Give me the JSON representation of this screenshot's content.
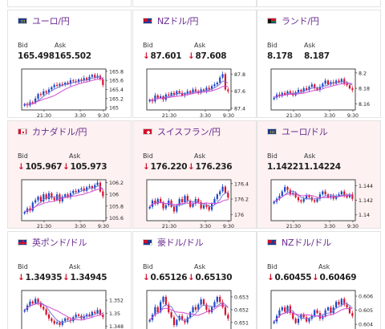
{
  "bid_label": "Bid",
  "ask_label": "Ask",
  "x_ticks": [
    "21:30",
    "3:30",
    "9:30"
  ],
  "colors": {
    "up": "#1a49c4",
    "down": "#d8102b",
    "ma1": "#7a7ad6",
    "ma2": "#d44bd4",
    "pair": "#6a2c91",
    "arrow": "#d8102b"
  },
  "cards": [
    {
      "pair": "ユーロ/円",
      "flag": "eu",
      "bid": "165.498",
      "ask": "165.502",
      "bid_down": false,
      "ask_down": false,
      "bg": "white",
      "y_ticks": [
        "165.8",
        "165.6",
        "165.4",
        "165.2",
        "165"
      ],
      "yrange": [
        164.95,
        165.85
      ],
      "closes": [
        165.08,
        165.05,
        165.12,
        165.1,
        165.2,
        165.3,
        165.28,
        165.36,
        165.33,
        165.4,
        165.45,
        165.5,
        165.48,
        165.52,
        165.5,
        165.55,
        165.52,
        165.6,
        165.58,
        165.56,
        165.62,
        165.6,
        165.65,
        165.6,
        165.68,
        165.72,
        165.66,
        165.7,
        165.62,
        165.5
      ]
    },
    {
      "pair": "NZドル/円",
      "flag": "nz",
      "bid": "87.601",
      "ask": "87.608",
      "bid_down": true,
      "ask_down": true,
      "bg": "white",
      "y_ticks": [
        "87.8",
        "87.6",
        "87.4"
      ],
      "yrange": [
        87.38,
        87.86
      ],
      "closes": [
        87.5,
        87.48,
        87.55,
        87.52,
        87.54,
        87.5,
        87.56,
        87.55,
        87.58,
        87.56,
        87.6,
        87.58,
        87.55,
        87.57,
        87.6,
        87.58,
        87.62,
        87.6,
        87.58,
        87.62,
        87.6,
        87.64,
        87.62,
        87.66,
        87.68,
        87.7,
        87.76,
        87.8,
        87.62,
        87.6
      ]
    },
    {
      "pair": "ランド/円",
      "flag": "za",
      "bid": "8.178",
      "ask": "8.187",
      "bid_down": false,
      "ask_down": false,
      "bg": "white",
      "y_ticks": [
        "8.2",
        "8.18",
        "8.16"
      ],
      "yrange": [
        8.152,
        8.205
      ],
      "closes": [
        8.168,
        8.172,
        8.17,
        8.174,
        8.172,
        8.176,
        8.174,
        8.171,
        8.175,
        8.178,
        8.176,
        8.18,
        8.178,
        8.182,
        8.185,
        8.18,
        8.178,
        8.182,
        8.186,
        8.19,
        8.185,
        8.188,
        8.186,
        8.19,
        8.188,
        8.192,
        8.186,
        8.184,
        8.18,
        8.178
      ]
    },
    {
      "pair": "カナダドル/円",
      "flag": "ca",
      "bid": "105.967",
      "ask": "105.973",
      "bid_down": true,
      "ask_down": true,
      "bg": "pink",
      "y_ticks": [
        "106.2",
        "106",
        "105.8",
        "105.6"
      ],
      "yrange": [
        105.55,
        106.25
      ],
      "closes": [
        105.7,
        105.76,
        105.72,
        105.86,
        105.9,
        105.96,
        105.88,
        106.0,
        105.92,
        106.02,
        105.94,
        105.9,
        106.0,
        105.88,
        105.96,
        106.0,
        105.95,
        106.02,
        106.06,
        106.04,
        106.08,
        106.1,
        106.06,
        106.12,
        106.14,
        106.1,
        106.16,
        106.2,
        106.05,
        105.97
      ]
    },
    {
      "pair": "スイスフラン/円",
      "flag": "ch",
      "bid": "176.220",
      "ask": "176.236",
      "bid_down": true,
      "ask_down": true,
      "bg": "pink",
      "y_ticks": [
        "176.4",
        "176.2",
        "176"
      ],
      "yrange": [
        175.92,
        176.45
      ],
      "closes": [
        176.1,
        176.18,
        176.14,
        176.2,
        176.16,
        176.08,
        176.12,
        176.18,
        176.1,
        176.04,
        176.12,
        176.2,
        176.16,
        176.24,
        176.18,
        176.1,
        176.14,
        176.2,
        176.16,
        176.08,
        176.12,
        176.1,
        176.06,
        176.14,
        176.2,
        176.26,
        176.3,
        176.36,
        176.28,
        176.22
      ]
    },
    {
      "pair": "ユーロ/ドル",
      "flag": "eu",
      "bid": "1.14221",
      "ask": "1.14224",
      "bid_down": false,
      "ask_down": false,
      "bg": "pink",
      "y_ticks": [
        "1.144",
        "1.142",
        "1.14"
      ],
      "yrange": [
        1.1392,
        1.1448
      ],
      "closes": [
        1.1418,
        1.1422,
        1.1426,
        1.1432,
        1.1438,
        1.1434,
        1.1428,
        1.143,
        1.1424,
        1.142,
        1.1418,
        1.1422,
        1.1426,
        1.1424,
        1.142,
        1.1418,
        1.1422,
        1.1428,
        1.1432,
        1.1428,
        1.1424,
        1.1426,
        1.1422,
        1.1426,
        1.1428,
        1.1432,
        1.1426,
        1.1424,
        1.1428,
        1.1422
      ]
    },
    {
      "pair": "英ポンド/ドル",
      "flag": "gb",
      "bid": "1.34935",
      "ask": "1.34945",
      "bid_down": true,
      "ask_down": true,
      "bg": "white",
      "y_ticks": [
        "1.352",
        "1.35",
        "1.348"
      ],
      "yrange": [
        1.3472,
        1.3535
      ],
      "closes": [
        1.3505,
        1.3512,
        1.3518,
        1.3515,
        1.3522,
        1.3516,
        1.351,
        1.3506,
        1.3498,
        1.3492,
        1.3488,
        1.3484,
        1.3486,
        1.3482,
        1.3488,
        1.3492,
        1.349,
        1.3488,
        1.3494,
        1.3498,
        1.3496,
        1.3492,
        1.3495,
        1.3498,
        1.3496,
        1.3502,
        1.35,
        1.3505,
        1.3498,
        1.3494
      ]
    },
    {
      "pair": "豪ドル/ドル",
      "flag": "au",
      "bid": "0.65126",
      "ask": "0.65130",
      "bid_down": true,
      "ask_down": true,
      "bg": "white",
      "y_ticks": [
        "0.653",
        "0.652",
        "0.651"
      ],
      "yrange": [
        0.6503,
        0.6535
      ],
      "closes": [
        0.6512,
        0.6516,
        0.6522,
        0.6518,
        0.6526,
        0.653,
        0.6524,
        0.6518,
        0.6514,
        0.6508,
        0.6512,
        0.6515,
        0.6512,
        0.651,
        0.6514,
        0.6518,
        0.6522,
        0.652,
        0.6524,
        0.6528,
        0.6524,
        0.652,
        0.6518,
        0.6522,
        0.6526,
        0.653,
        0.6526,
        0.6522,
        0.6516,
        0.6513
      ]
    },
    {
      "pair": "NZドル/ドル",
      "flag": "nz",
      "bid": "0.60455",
      "ask": "0.60469",
      "bid_down": true,
      "ask_down": true,
      "bg": "white",
      "y_ticks": [
        "0.606",
        "0.605",
        "0.604"
      ],
      "yrange": [
        0.6035,
        0.6064
      ],
      "closes": [
        0.6042,
        0.6046,
        0.605,
        0.6052,
        0.6049,
        0.6053,
        0.6048,
        0.6044,
        0.6041,
        0.6044,
        0.6047,
        0.6045,
        0.6042,
        0.6044,
        0.6046,
        0.605,
        0.6048,
        0.6044,
        0.6046,
        0.605,
        0.6052,
        0.6048,
        0.6052,
        0.6056,
        0.6054,
        0.6058,
        0.6054,
        0.6052,
        0.6048,
        0.6046
      ]
    }
  ]
}
